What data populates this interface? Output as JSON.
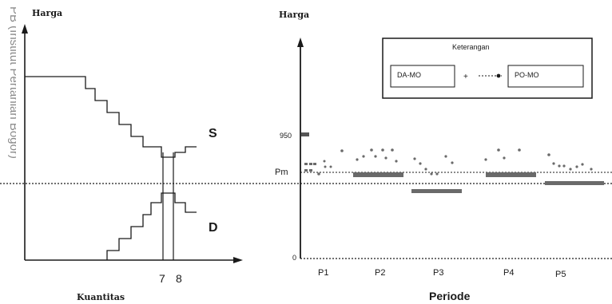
{
  "watermark": "PB (Institut Pertanian Bogor)",
  "left_panel": {
    "y_label": "Harga",
    "x_label": "Kuantitas",
    "supply_label": "S",
    "demand_label": "D",
    "tick_7": "7",
    "tick_8": "8"
  },
  "right_panel": {
    "y_label": "Harga",
    "x_label": "Periode",
    "tick_950": "950",
    "tick_pm": "Pm",
    "tick_0": "0",
    "periods": [
      "P1",
      "P2",
      "P3",
      "P4",
      "P5"
    ],
    "legend": {
      "title": "Keterangan",
      "item1": "DA-MO",
      "item2": "PO-MO"
    }
  },
  "colors": {
    "line": "#1a1a1a",
    "grey_marker": "#6a6a6a",
    "watermark": "#8a8a8a"
  }
}
